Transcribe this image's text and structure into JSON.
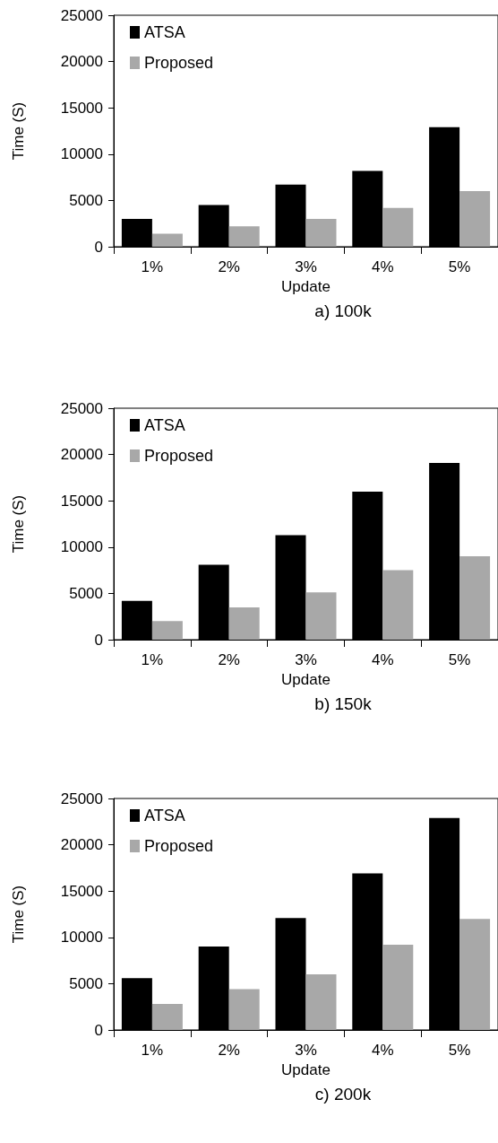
{
  "chart_data": [
    {
      "type": "bar",
      "title": "a) 100k",
      "xlabel": "Update",
      "ylabel": "Time (S)",
      "categories": [
        "1%",
        "2%",
        "3%",
        "4%",
        "5%"
      ],
      "ylim": [
        0,
        25000
      ],
      "yticks": [
        0,
        5000,
        10000,
        15000,
        20000,
        25000
      ],
      "grid": false,
      "legend": "top left",
      "series": [
        {
          "name": "ATSA",
          "color": "#000000",
          "values": [
            3000,
            4500,
            6700,
            8200,
            12900
          ]
        },
        {
          "name": "Proposed",
          "color": "#a8a8a8",
          "values": [
            1400,
            2200,
            3000,
            4200,
            6000
          ]
        }
      ]
    },
    {
      "type": "bar",
      "title": "b) 150k",
      "xlabel": "Update",
      "ylabel": "Time (S)",
      "categories": [
        "1%",
        "2%",
        "3%",
        "4%",
        "5%"
      ],
      "ylim": [
        0,
        25000
      ],
      "yticks": [
        0,
        5000,
        10000,
        15000,
        20000,
        25000
      ],
      "grid": false,
      "legend": "top left",
      "series": [
        {
          "name": "ATSA",
          "color": "#000000",
          "values": [
            4200,
            8100,
            11300,
            16000,
            19100
          ]
        },
        {
          "name": "Proposed",
          "color": "#a8a8a8",
          "values": [
            2000,
            3500,
            5100,
            7500,
            9000
          ]
        }
      ]
    },
    {
      "type": "bar",
      "title": "c) 200k",
      "xlabel": "Update",
      "ylabel": "Time (S)",
      "categories": [
        "1%",
        "2%",
        "3%",
        "4%",
        "5%"
      ],
      "ylim": [
        0,
        25000
      ],
      "yticks": [
        0,
        5000,
        10000,
        15000,
        20000,
        25000
      ],
      "grid": false,
      "legend": "top left",
      "series": [
        {
          "name": "ATSA",
          "color": "#000000",
          "values": [
            5600,
            9000,
            12100,
            16900,
            22900
          ]
        },
        {
          "name": "Proposed",
          "color": "#a8a8a8",
          "values": [
            2800,
            4400,
            6000,
            9200,
            12000
          ]
        }
      ]
    }
  ]
}
